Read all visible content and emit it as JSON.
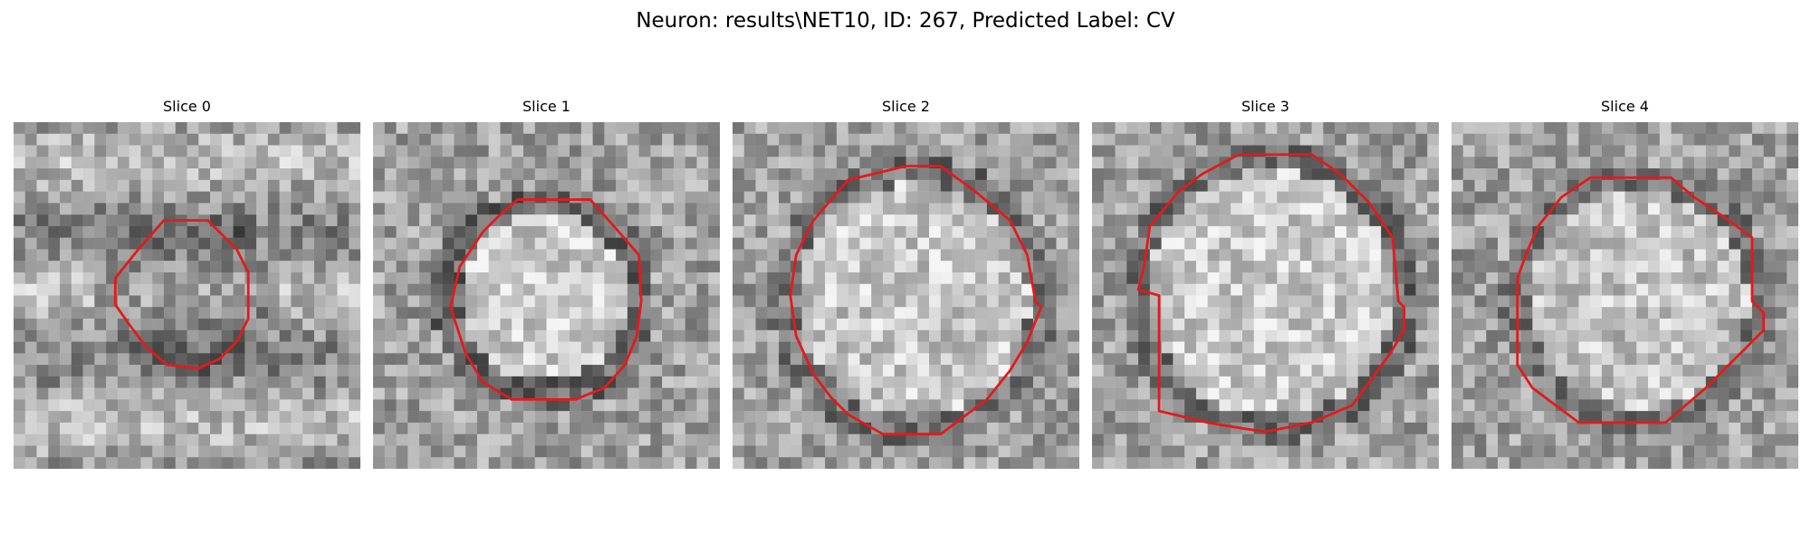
{
  "figure": {
    "title": "Neuron: results\\NET10, ID: 267, Predicted Label: CV",
    "contour_color": "#e31a1c"
  },
  "slices": [
    {
      "title": "Slice 0"
    },
    {
      "title": "Slice 1"
    },
    {
      "title": "Slice 2"
    },
    {
      "title": "Slice 3"
    },
    {
      "title": "Slice 4"
    }
  ]
}
